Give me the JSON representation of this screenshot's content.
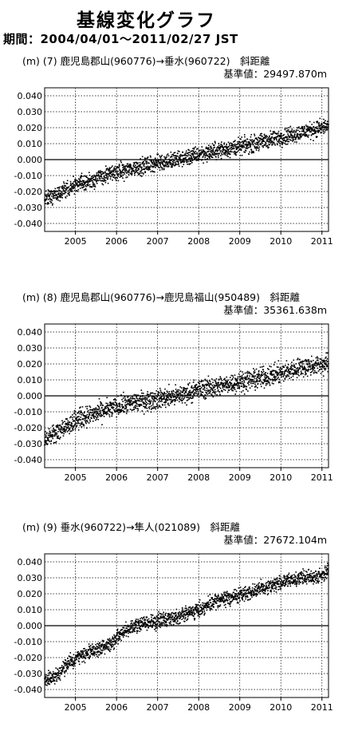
{
  "header": {
    "title": "基線変化グラフ",
    "period": "期間：2004/04/01～2011/02/27 JST"
  },
  "chart_data": [
    {
      "type": "scatter",
      "title": "(m) (7) 鹿児島郡山(960776)→垂水(960722)　斜距離",
      "subtitle": "基準値：29497.870m",
      "ylabel": "(m)",
      "ylim": [
        -0.045,
        0.045
      ],
      "xlim": [
        2004.25,
        2011.16
      ],
      "yticks": [
        "0.040",
        "0.030",
        "0.020",
        "0.010",
        "0.000",
        "-0.010",
        "-0.020",
        "-0.030",
        "-0.040"
      ],
      "ytick_values": [
        0.04,
        0.03,
        0.02,
        0.01,
        0.0,
        -0.01,
        -0.02,
        -0.03,
        -0.04
      ],
      "xticks": [
        "2005",
        "2006",
        "2007",
        "2008",
        "2009",
        "2010",
        "2011"
      ],
      "xtick_values": [
        2005,
        2006,
        2007,
        2008,
        2009,
        2010,
        2011
      ],
      "grid": true,
      "trend": [
        [
          2004.25,
          -0.025
        ],
        [
          2004.6,
          -0.021
        ],
        [
          2005.0,
          -0.016
        ],
        [
          2005.5,
          -0.012
        ],
        [
          2006.0,
          -0.008
        ],
        [
          2006.5,
          -0.005
        ],
        [
          2007.0,
          -0.002
        ],
        [
          2007.5,
          0.0
        ],
        [
          2008.0,
          0.003
        ],
        [
          2008.5,
          0.006
        ],
        [
          2009.0,
          0.008
        ],
        [
          2009.5,
          0.011
        ],
        [
          2010.0,
          0.014
        ],
        [
          2010.5,
          0.017
        ],
        [
          2011.16,
          0.021
        ]
      ],
      "scatter": 0.0025
    },
    {
      "type": "scatter",
      "title": "(m) (8) 鹿児島郡山(960776)→鹿児島福山(950489)　斜距離",
      "subtitle": "基準値：35361.638m",
      "ylabel": "(m)",
      "ylim": [
        -0.045,
        0.045
      ],
      "xlim": [
        2004.25,
        2011.16
      ],
      "yticks": [
        "0.040",
        "0.030",
        "0.020",
        "0.010",
        "0.000",
        "-0.010",
        "-0.020",
        "-0.030",
        "-0.040"
      ],
      "ytick_values": [
        0.04,
        0.03,
        0.02,
        0.01,
        0.0,
        -0.01,
        -0.02,
        -0.03,
        -0.04
      ],
      "xticks": [
        "2005",
        "2006",
        "2007",
        "2008",
        "2009",
        "2010",
        "2011"
      ],
      "xtick_values": [
        2005,
        2006,
        2007,
        2008,
        2009,
        2010,
        2011
      ],
      "grid": true,
      "trend": [
        [
          2004.25,
          -0.027
        ],
        [
          2004.6,
          -0.022
        ],
        [
          2005.0,
          -0.015
        ],
        [
          2005.5,
          -0.011
        ],
        [
          2006.0,
          -0.007
        ],
        [
          2006.5,
          -0.004
        ],
        [
          2007.0,
          -0.002
        ],
        [
          2007.5,
          0.0
        ],
        [
          2008.0,
          0.004
        ],
        [
          2008.5,
          0.006
        ],
        [
          2009.0,
          0.009
        ],
        [
          2009.5,
          0.011
        ],
        [
          2010.0,
          0.014
        ],
        [
          2010.5,
          0.018
        ],
        [
          2011.16,
          0.02
        ]
      ],
      "scatter": 0.003
    },
    {
      "type": "scatter",
      "title": "(m) (9) 垂水(960722)→隼人(021089)　斜距離",
      "subtitle": "基準値：27672.104m",
      "ylabel": "(m)",
      "ylim": [
        -0.045,
        0.045
      ],
      "xlim": [
        2004.25,
        2011.16
      ],
      "yticks": [
        "0.040",
        "0.030",
        "0.020",
        "0.010",
        "0.000",
        "-0.010",
        "-0.020",
        "-0.030",
        "-0.040"
      ],
      "ytick_values": [
        0.04,
        0.03,
        0.02,
        0.01,
        0.0,
        -0.01,
        -0.02,
        -0.03,
        -0.04
      ],
      "xticks": [
        "2005",
        "2006",
        "2007",
        "2008",
        "2009",
        "2010",
        "2011"
      ],
      "xtick_values": [
        2005,
        2006,
        2007,
        2008,
        2009,
        2010,
        2011
      ],
      "grid": true,
      "trend": [
        [
          2004.25,
          -0.034
        ],
        [
          2004.6,
          -0.03
        ],
        [
          2004.9,
          -0.022
        ],
        [
          2005.2,
          -0.018
        ],
        [
          2005.6,
          -0.014
        ],
        [
          2005.9,
          -0.011
        ],
        [
          2006.2,
          -0.003
        ],
        [
          2006.5,
          0.0
        ],
        [
          2007.0,
          0.003
        ],
        [
          2007.5,
          0.006
        ],
        [
          2008.0,
          0.01
        ],
        [
          2008.5,
          0.016
        ],
        [
          2009.0,
          0.019
        ],
        [
          2009.5,
          0.023
        ],
        [
          2010.0,
          0.027
        ],
        [
          2010.5,
          0.03
        ],
        [
          2011.0,
          0.031
        ],
        [
          2011.16,
          0.036
        ]
      ],
      "scatter": 0.0022
    }
  ]
}
